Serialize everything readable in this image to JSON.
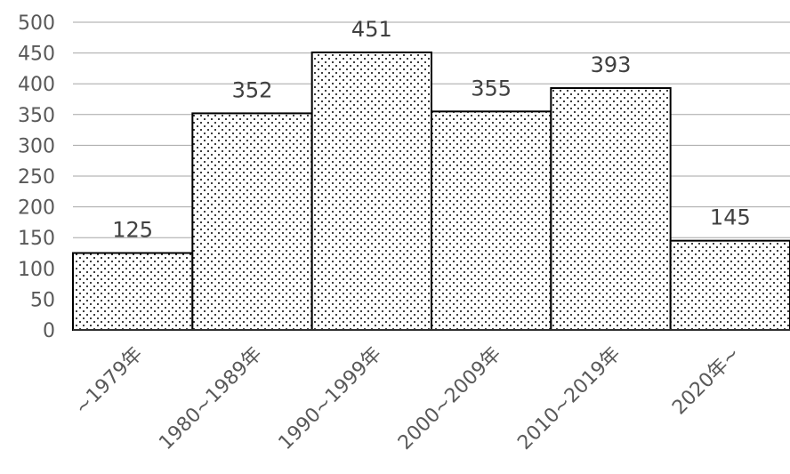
{
  "chart_data": {
    "type": "bar",
    "categories": [
      "~1979年",
      "1980~1989年",
      "1990~1999年",
      "2000~2009年",
      "2010~2019年",
      "2020年~"
    ],
    "values": [
      125,
      352,
      451,
      355,
      393,
      145
    ],
    "data_labels": [
      "125",
      "352",
      "451",
      "355",
      "393",
      "145"
    ],
    "ylim": [
      0,
      500
    ],
    "yticks": [
      "0",
      "50",
      "100",
      "150",
      "200",
      "250",
      "300",
      "350",
      "400",
      "450",
      "500"
    ],
    "grid": true,
    "legend": "none",
    "bar_fill": "dotted pattern",
    "colors": {
      "bar_fill": "#ffffff",
      "bar_dots": "#000000",
      "bar_stroke": "#000000",
      "grid": "#a6a6a6",
      "axis": "#404040",
      "text": "#595959"
    }
  }
}
